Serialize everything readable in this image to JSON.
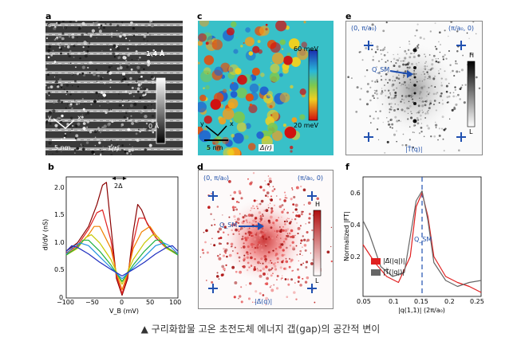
{
  "panels": {
    "a": {
      "letter": "a",
      "scale_top": "1.4 Å",
      "scale_bottom": "0 Å",
      "scalebar": "5 nm",
      "map_label": "T(r)",
      "axis_y": "y",
      "axis_x": "x"
    },
    "b": {
      "letter": "b",
      "two_delta": "2Δ",
      "ylabel": "dI/dV (nS)",
      "xlabel": "V_B (mV)",
      "xticks": [
        "−100",
        "−50",
        "0",
        "50",
        "100"
      ],
      "yticks": [
        "0",
        "0.5",
        "1.0",
        "1.5",
        "2.0"
      ]
    },
    "c": {
      "letter": "c",
      "scale_top": "60 meV",
      "scale_bottom": "20 meV",
      "scalebar": "5 nm",
      "map_label": "Δ(r)",
      "axis_y": "y",
      "axis_x": "x"
    },
    "d": {
      "letter": "d",
      "corner_left": "(0, π/a₀)",
      "corner_right": "(π/a₀, 0)",
      "q_label": "Q_SM",
      "bar_top": "H",
      "bar_bottom": "L",
      "map_label": "|Δ̃(q)|"
    },
    "e": {
      "letter": "e",
      "corner_left": "(0, π/a₀)",
      "corner_right": "(π/a₀, 0)",
      "q_label": "Q_SM",
      "bar_top": "H",
      "bar_bottom": "L",
      "map_label": "|T̃(q)|"
    },
    "f": {
      "letter": "f",
      "ylabel": "Normalized |FT|",
      "xlabel": "|q(1,1)| (2π/a₀)",
      "q_label": "Q_SM",
      "xticks": [
        "0.05",
        "0.1",
        "0.15",
        "0.2",
        "0.25"
      ],
      "yticks": [
        "0.2",
        "0.4",
        "0.6"
      ],
      "legend": [
        {
          "label": "|Δ̃(|q|)|",
          "color": "#e02020"
        },
        {
          "label": "|T̃(|q|)|",
          "color": "#666666"
        }
      ]
    }
  },
  "caption": "▲ 구리화합물 고온 초전도체 에너지 갭(gap)의 공간적 변이",
  "chart_data": [
    {
      "type": "line",
      "panel": "b",
      "xlabel": "V_B (mV)",
      "ylabel": "dI/dV (nS)",
      "xlim": [
        -100,
        100
      ],
      "ylim": [
        0,
        2.2
      ],
      "series": [
        {
          "color": "#8a0000",
          "x": [
            -100,
            -80,
            -60,
            -45,
            -35,
            -28,
            -20,
            -10,
            0,
            10,
            20,
            28,
            35,
            45,
            60,
            80,
            100
          ],
          "y": [
            0.85,
            1.0,
            1.3,
            1.7,
            2.05,
            2.1,
            1.3,
            0.35,
            0.05,
            0.35,
            1.2,
            1.7,
            1.6,
            1.35,
            1.1,
            0.9,
            0.8
          ]
        },
        {
          "color": "#e02020",
          "x": [
            -100,
            -80,
            -60,
            -45,
            -35,
            -20,
            -10,
            0,
            10,
            20,
            30,
            40,
            60,
            80,
            100
          ],
          "y": [
            0.82,
            0.95,
            1.25,
            1.55,
            1.6,
            1.05,
            0.4,
            0.08,
            0.4,
            1.0,
            1.45,
            1.45,
            1.1,
            0.9,
            0.8
          ]
        },
        {
          "color": "#f08000",
          "x": [
            -100,
            -80,
            -60,
            -50,
            -40,
            -20,
            -10,
            0,
            10,
            20,
            35,
            50,
            60,
            80,
            100
          ],
          "y": [
            0.8,
            0.92,
            1.15,
            1.3,
            1.3,
            0.9,
            0.45,
            0.15,
            0.45,
            0.9,
            1.2,
            1.3,
            1.15,
            0.92,
            0.8
          ]
        },
        {
          "color": "#c8c800",
          "x": [
            -100,
            -80,
            -65,
            -55,
            -40,
            -20,
            0,
            20,
            40,
            55,
            65,
            80,
            100
          ],
          "y": [
            0.78,
            0.9,
            1.1,
            1.15,
            1.0,
            0.7,
            0.25,
            0.7,
            1.0,
            1.15,
            1.1,
            0.9,
            0.78
          ]
        },
        {
          "color": "#20b040",
          "x": [
            -100,
            -80,
            -70,
            -60,
            -40,
            -20,
            0,
            20,
            40,
            60,
            70,
            80,
            100
          ],
          "y": [
            0.78,
            0.92,
            1.05,
            1.05,
            0.85,
            0.6,
            0.3,
            0.6,
            0.85,
            1.05,
            1.05,
            0.92,
            0.78
          ]
        },
        {
          "color": "#2090e0",
          "x": [
            -100,
            -85,
            -75,
            -60,
            -40,
            -20,
            0,
            20,
            40,
            60,
            75,
            85,
            100
          ],
          "y": [
            0.8,
            0.95,
            1.0,
            0.95,
            0.75,
            0.55,
            0.35,
            0.55,
            0.75,
            0.95,
            1.0,
            0.95,
            0.8
          ]
        },
        {
          "color": "#2030c0",
          "x": [
            -100,
            -90,
            -80,
            -60,
            -40,
            -20,
            0,
            20,
            40,
            60,
            80,
            90,
            100
          ],
          "y": [
            0.85,
            0.95,
            0.92,
            0.8,
            0.65,
            0.52,
            0.4,
            0.52,
            0.65,
            0.8,
            0.92,
            0.95,
            0.85
          ]
        }
      ]
    },
    {
      "type": "line",
      "panel": "f",
      "xlabel": "|q(1,1)| (2π/a₀)",
      "ylabel": "Normalized |FT|",
      "xlim": [
        0.05,
        0.25
      ],
      "ylim": [
        0.1,
        0.7
      ],
      "series": [
        {
          "name": "|Δ̃(|q|)|",
          "color": "#e02020",
          "x": [
            0.05,
            0.07,
            0.09,
            0.11,
            0.13,
            0.14,
            0.15,
            0.16,
            0.17,
            0.19,
            0.21,
            0.23,
            0.25
          ],
          "y": [
            0.36,
            0.27,
            0.2,
            0.17,
            0.3,
            0.55,
            0.62,
            0.5,
            0.3,
            0.2,
            0.17,
            0.15,
            0.12
          ]
        },
        {
          "name": "|T̃(|q|)|",
          "color": "#666666",
          "x": [
            0.05,
            0.06,
            0.08,
            0.1,
            0.12,
            0.13,
            0.14,
            0.15,
            0.16,
            0.17,
            0.19,
            0.21,
            0.23,
            0.25
          ],
          "y": [
            0.48,
            0.42,
            0.25,
            0.2,
            0.22,
            0.4,
            0.58,
            0.63,
            0.48,
            0.27,
            0.18,
            0.15,
            0.17,
            0.18
          ]
        }
      ]
    }
  ]
}
